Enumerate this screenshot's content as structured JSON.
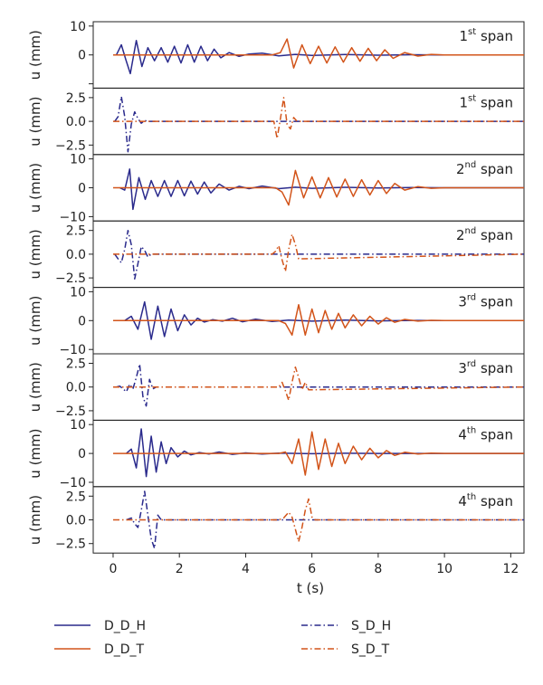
{
  "chart_data": {
    "type": "line",
    "x_axis": {
      "label": "t (s)",
      "range": [
        -0.6,
        12.4
      ],
      "ticks": [
        0,
        2,
        4,
        6,
        8,
        10,
        12
      ],
      "tick_labels": [
        "0",
        "2",
        "4",
        "6",
        "8",
        "10",
        "12"
      ]
    },
    "y_label": "u (mm)",
    "colors": {
      "H": "#2a2a8c",
      "T": "#d2541a"
    },
    "legend": [
      {
        "name": "D_D_H",
        "style": "solid",
        "color": "#2a2a8c"
      },
      {
        "name": "D_D_T",
        "style": "solid",
        "color": "#d2541a"
      },
      {
        "name": "S_D_H",
        "style": "dashdot",
        "color": "#2a2a8c"
      },
      {
        "name": "S_D_T",
        "style": "dashdot",
        "color": "#d2541a"
      }
    ],
    "panels": [
      {
        "span_num": "1",
        "span_sup": "st",
        "span_word": "span",
        "kind": "dynamic",
        "ylim": [
          -11.5,
          11.5
        ],
        "yticks": [
          10,
          0,
          -10
        ],
        "ytick_labels": [
          "10",
          "0",
          ""
        ],
        "series": [
          {
            "name": "D_D_H",
            "style": "solid",
            "color": "#2a2a8c",
            "x": [
              0.1,
              0.25,
              0.38,
              0.52,
              0.7,
              0.87,
              1.05,
              1.25,
              1.45,
              1.65,
              1.85,
              2.05,
              2.25,
              2.45,
              2.65,
              2.85,
              3.05,
              3.25,
              3.5,
              3.8,
              4.1,
              4.5,
              5.0,
              5.5,
              6.0,
              7.0,
              8.0,
              9.0,
              10.0,
              12.4
            ],
            "y": [
              0,
              3.5,
              -1.5,
              -6.5,
              5.0,
              -4.0,
              2.5,
              -2.0,
              2.5,
              -2.5,
              3.0,
              -2.8,
              3.5,
              -2.5,
              3.0,
              -2.0,
              2.0,
              -1.0,
              0.8,
              -0.5,
              0.3,
              0.6,
              -0.3,
              0.2,
              -0.2,
              0.15,
              -0.1,
              0.05,
              0,
              0
            ]
          },
          {
            "name": "D_D_T",
            "style": "solid",
            "color": "#d2541a",
            "x": [
              0.0,
              4.8,
              5.05,
              5.25,
              5.45,
              5.7,
              5.95,
              6.2,
              6.45,
              6.7,
              6.95,
              7.2,
              7.45,
              7.7,
              7.95,
              8.2,
              8.45,
              8.8,
              9.2,
              9.6,
              10.0,
              12.4
            ],
            "y": [
              0,
              0,
              0.8,
              5.5,
              -4.5,
              3.5,
              -3.0,
              3.0,
              -2.8,
              2.8,
              -2.5,
              2.5,
              -2.2,
              2.3,
              -2.0,
              1.8,
              -1.2,
              0.8,
              -0.4,
              0.2,
              0,
              0
            ]
          }
        ]
      },
      {
        "span_num": "1",
        "span_sup": "st",
        "span_word": "span",
        "kind": "static",
        "ylim": [
          -3.5,
          3.5
        ],
        "yticks": [
          2.5,
          0,
          -2.5
        ],
        "ytick_labels": [
          "2.5",
          "0.0",
          "−2.5"
        ],
        "series": [
          {
            "name": "S_D_H",
            "style": "dashdot",
            "color": "#2a2a8c",
            "x": [
              0.05,
              0.15,
              0.25,
              0.35,
              0.45,
              0.55,
              0.65,
              0.75,
              0.85,
              0.95,
              1.05,
              12.4
            ],
            "y": [
              0,
              0.5,
              2.6,
              0.5,
              -3.2,
              -0.3,
              1.0,
              0.3,
              -0.2,
              0.1,
              0,
              0
            ]
          },
          {
            "name": "S_D_T",
            "style": "dashdot",
            "color": "#d2541a",
            "x": [
              0.0,
              4.85,
              4.95,
              5.05,
              5.15,
              5.25,
              5.35,
              5.45,
              5.55,
              12.4
            ],
            "y": [
              0,
              0,
              -1.8,
              0.3,
              2.5,
              -0.3,
              -0.8,
              0.4,
              0,
              0
            ]
          }
        ]
      },
      {
        "span_num": "2",
        "span_sup": "nd",
        "span_word": "span",
        "kind": "dynamic",
        "ylim": [
          -11.5,
          11.5
        ],
        "yticks": [
          10,
          0,
          -10
        ],
        "ytick_labels": [
          "10",
          "0",
          "−10"
        ],
        "series": [
          {
            "name": "D_D_H",
            "style": "solid",
            "color": "#2a2a8c",
            "x": [
              0.2,
              0.35,
              0.5,
              0.6,
              0.78,
              0.97,
              1.15,
              1.35,
              1.55,
              1.75,
              1.95,
              2.15,
              2.35,
              2.55,
              2.75,
              2.95,
              3.2,
              3.5,
              3.8,
              4.1,
              4.5,
              5.0,
              5.5,
              6.0,
              7.0,
              8.0,
              9.0,
              10.0,
              12.4
            ],
            "y": [
              0,
              -0.8,
              6.5,
              -7.5,
              3.5,
              -4.0,
              2.5,
              -3.0,
              2.5,
              -3.0,
              2.5,
              -2.8,
              2.3,
              -2.2,
              2.0,
              -1.8,
              1.3,
              -0.8,
              0.5,
              -0.3,
              0.6,
              -0.3,
              0.2,
              -0.2,
              0.15,
              -0.1,
              0.05,
              0,
              0
            ]
          },
          {
            "name": "D_D_T",
            "style": "solid",
            "color": "#d2541a",
            "x": [
              0.0,
              4.9,
              5.1,
              5.3,
              5.5,
              5.75,
              6.0,
              6.25,
              6.5,
              6.75,
              7.0,
              7.25,
              7.5,
              7.75,
              8.0,
              8.25,
              8.5,
              8.8,
              9.2,
              9.6,
              10.0,
              12.4
            ],
            "y": [
              0,
              0,
              -1.5,
              -6.0,
              6.0,
              -3.5,
              3.8,
              -3.5,
              3.5,
              -3.2,
              3.0,
              -3.0,
              2.8,
              -2.5,
              2.5,
              -2.0,
              1.5,
              -0.8,
              0.4,
              -0.2,
              0,
              0
            ]
          }
        ]
      },
      {
        "span_num": "2",
        "span_sup": "nd",
        "span_word": "span",
        "kind": "static",
        "ylim": [
          -3.5,
          3.5
        ],
        "yticks": [
          2.5,
          0,
          -2.5
        ],
        "ytick_labels": [
          "2.5",
          "0.0",
          "−2.5"
        ],
        "series": [
          {
            "name": "S_D_H",
            "style": "dashdot",
            "color": "#2a2a8c",
            "x": [
              0.05,
              0.15,
              0.25,
              0.35,
              0.45,
              0.55,
              0.65,
              0.75,
              0.85,
              0.95,
              1.05,
              1.15,
              12.4
            ],
            "y": [
              0,
              -0.5,
              -0.9,
              0.5,
              2.5,
              1.0,
              -2.6,
              -1.0,
              0.8,
              0.4,
              -0.3,
              0,
              0
            ]
          },
          {
            "name": "S_D_T",
            "style": "dashdot",
            "color": "#d2541a",
            "x": [
              0.0,
              4.8,
              4.9,
              5.0,
              5.1,
              5.2,
              5.3,
              5.4,
              5.5,
              5.6,
              12.4
            ],
            "y": [
              0,
              0,
              0.3,
              0.9,
              -0.6,
              -1.8,
              0.5,
              2.1,
              1.0,
              -0.5,
              0
            ]
          }
        ]
      },
      {
        "span_num": "3",
        "span_sup": "rd",
        "span_word": "span",
        "kind": "dynamic",
        "ylim": [
          -11.5,
          11.5
        ],
        "yticks": [
          10,
          0,
          -10
        ],
        "ytick_labels": [
          "10",
          "0",
          "−10"
        ],
        "series": [
          {
            "name": "D_D_H",
            "style": "solid",
            "color": "#2a2a8c",
            "x": [
              0.35,
              0.55,
              0.75,
              0.95,
              1.15,
              1.35,
              1.55,
              1.75,
              1.95,
              2.15,
              2.35,
              2.55,
              2.75,
              3.0,
              3.3,
              3.6,
              3.9,
              4.3,
              4.8,
              5.3,
              6.0,
              7.0,
              8.0,
              9.0,
              10.0,
              12.4
            ],
            "y": [
              0,
              1.5,
              -3.0,
              6.5,
              -6.5,
              5.0,
              -5.5,
              4.0,
              -3.5,
              2.0,
              -1.5,
              0.8,
              -0.5,
              0.3,
              -0.2,
              0.8,
              -0.4,
              0.5,
              -0.3,
              0.2,
              -0.2,
              0.15,
              -0.1,
              0.05,
              0,
              0
            ]
          },
          {
            "name": "D_D_T",
            "style": "solid",
            "color": "#d2541a",
            "x": [
              0.0,
              5.0,
              5.2,
              5.4,
              5.6,
              5.8,
              6.0,
              6.2,
              6.4,
              6.6,
              6.8,
              7.0,
              7.25,
              7.5,
              7.75,
              8.0,
              8.25,
              8.5,
              8.8,
              9.2,
              9.6,
              10.0,
              12.4
            ],
            "y": [
              0,
              0,
              -1.0,
              -5.0,
              5.5,
              -5.0,
              4.0,
              -4.2,
              3.5,
              -3.0,
              2.5,
              -2.5,
              2.0,
              -1.8,
              1.5,
              -1.2,
              1.0,
              -0.6,
              0.4,
              -0.2,
              0.1,
              0,
              0
            ]
          }
        ]
      },
      {
        "span_num": "3",
        "span_sup": "rd",
        "span_word": "span",
        "kind": "static",
        "ylim": [
          -3.5,
          3.5
        ],
        "yticks": [
          2.5,
          0,
          -2.5
        ],
        "ytick_labels": [
          "2.5",
          "0.0",
          "−2.5"
        ],
        "series": [
          {
            "name": "S_D_H",
            "style": "dashdot",
            "color": "#2a2a8c",
            "x": [
              0.1,
              0.2,
              0.3,
              0.4,
              0.5,
              0.6,
              0.7,
              0.8,
              0.9,
              1.0,
              1.1,
              1.2,
              1.3,
              12.4
            ],
            "y": [
              0,
              0.1,
              -0.2,
              -0.5,
              0.3,
              -0.2,
              1.0,
              2.4,
              -1.0,
              -2.0,
              0.8,
              -0.2,
              0,
              0
            ]
          },
          {
            "name": "S_D_T",
            "style": "dashdot",
            "color": "#d2541a",
            "x": [
              0.0,
              5.0,
              5.1,
              5.2,
              5.3,
              5.4,
              5.5,
              5.6,
              5.7,
              5.8,
              5.9,
              12.4
            ],
            "y": [
              0,
              0,
              0.5,
              -0.4,
              -1.4,
              0.5,
              2.1,
              1.0,
              -0.3,
              0.5,
              -0.3,
              0
            ]
          }
        ]
      },
      {
        "span_num": "4",
        "span_sup": "th",
        "span_word": "span",
        "kind": "dynamic",
        "ylim": [
          -11.5,
          11.5
        ],
        "yticks": [
          10,
          0,
          -10
        ],
        "ytick_labels": [
          "10",
          "0",
          "−10"
        ],
        "series": [
          {
            "name": "D_D_H",
            "style": "solid",
            "color": "#2a2a8c",
            "x": [
              0.4,
              0.55,
              0.7,
              0.85,
              1.0,
              1.15,
              1.3,
              1.45,
              1.6,
              1.75,
              1.95,
              2.15,
              2.35,
              2.6,
              2.9,
              3.2,
              3.6,
              4.0,
              4.5,
              5.0,
              6.0,
              7.0,
              8.0,
              10.0,
              12.4
            ],
            "y": [
              0,
              1.5,
              -5.0,
              8.5,
              -8.0,
              6.0,
              -6.5,
              4.0,
              -3.5,
              2.0,
              -1.2,
              0.8,
              -0.5,
              0.3,
              -0.2,
              0.5,
              -0.3,
              0.2,
              -0.2,
              0.1,
              -0.1,
              0.05,
              0,
              0,
              0
            ]
          },
          {
            "name": "D_D_T",
            "style": "solid",
            "color": "#d2541a",
            "x": [
              0.0,
              5.0,
              5.2,
              5.4,
              5.6,
              5.8,
              6.0,
              6.2,
              6.4,
              6.6,
              6.8,
              7.0,
              7.25,
              7.5,
              7.75,
              8.0,
              8.25,
              8.5,
              8.8,
              9.2,
              9.6,
              10.0,
              12.4
            ],
            "y": [
              0,
              0,
              0.5,
              -3.5,
              5.0,
              -7.5,
              7.5,
              -5.5,
              5.0,
              -4.5,
              3.5,
              -3.5,
              2.5,
              -2.2,
              1.8,
              -1.5,
              1.0,
              -0.7,
              0.4,
              -0.2,
              0.1,
              0,
              0
            ]
          }
        ]
      },
      {
        "span_num": "4",
        "span_sup": "th",
        "span_word": "span",
        "kind": "static",
        "ylim": [
          -3.5,
          3.5
        ],
        "yticks": [
          2.5,
          0,
          -2.5
        ],
        "ytick_labels": [
          "2.5",
          "0.0",
          "−2.5"
        ],
        "series": [
          {
            "name": "S_D_H",
            "style": "dashdot",
            "color": "#2a2a8c",
            "x": [
              0.4,
              0.55,
              0.65,
              0.75,
              0.85,
              0.95,
              1.05,
              1.15,
              1.25,
              1.35,
              1.45,
              12.4
            ],
            "y": [
              0,
              0.2,
              -0.4,
              -0.8,
              1.0,
              3.0,
              0.5,
              -2.0,
              -3.0,
              0.5,
              0,
              0
            ]
          },
          {
            "name": "S_D_T",
            "style": "dashdot",
            "color": "#d2541a",
            "x": [
              0.0,
              5.0,
              5.15,
              5.3,
              5.4,
              5.5,
              5.6,
              5.7,
              5.8,
              5.9,
              6.0,
              6.1,
              12.4
            ],
            "y": [
              0,
              0,
              0.2,
              0.8,
              0.3,
              -1.0,
              -2.3,
              -0.8,
              1.0,
              2.2,
              0.3,
              0,
              0
            ]
          }
        ]
      }
    ]
  }
}
